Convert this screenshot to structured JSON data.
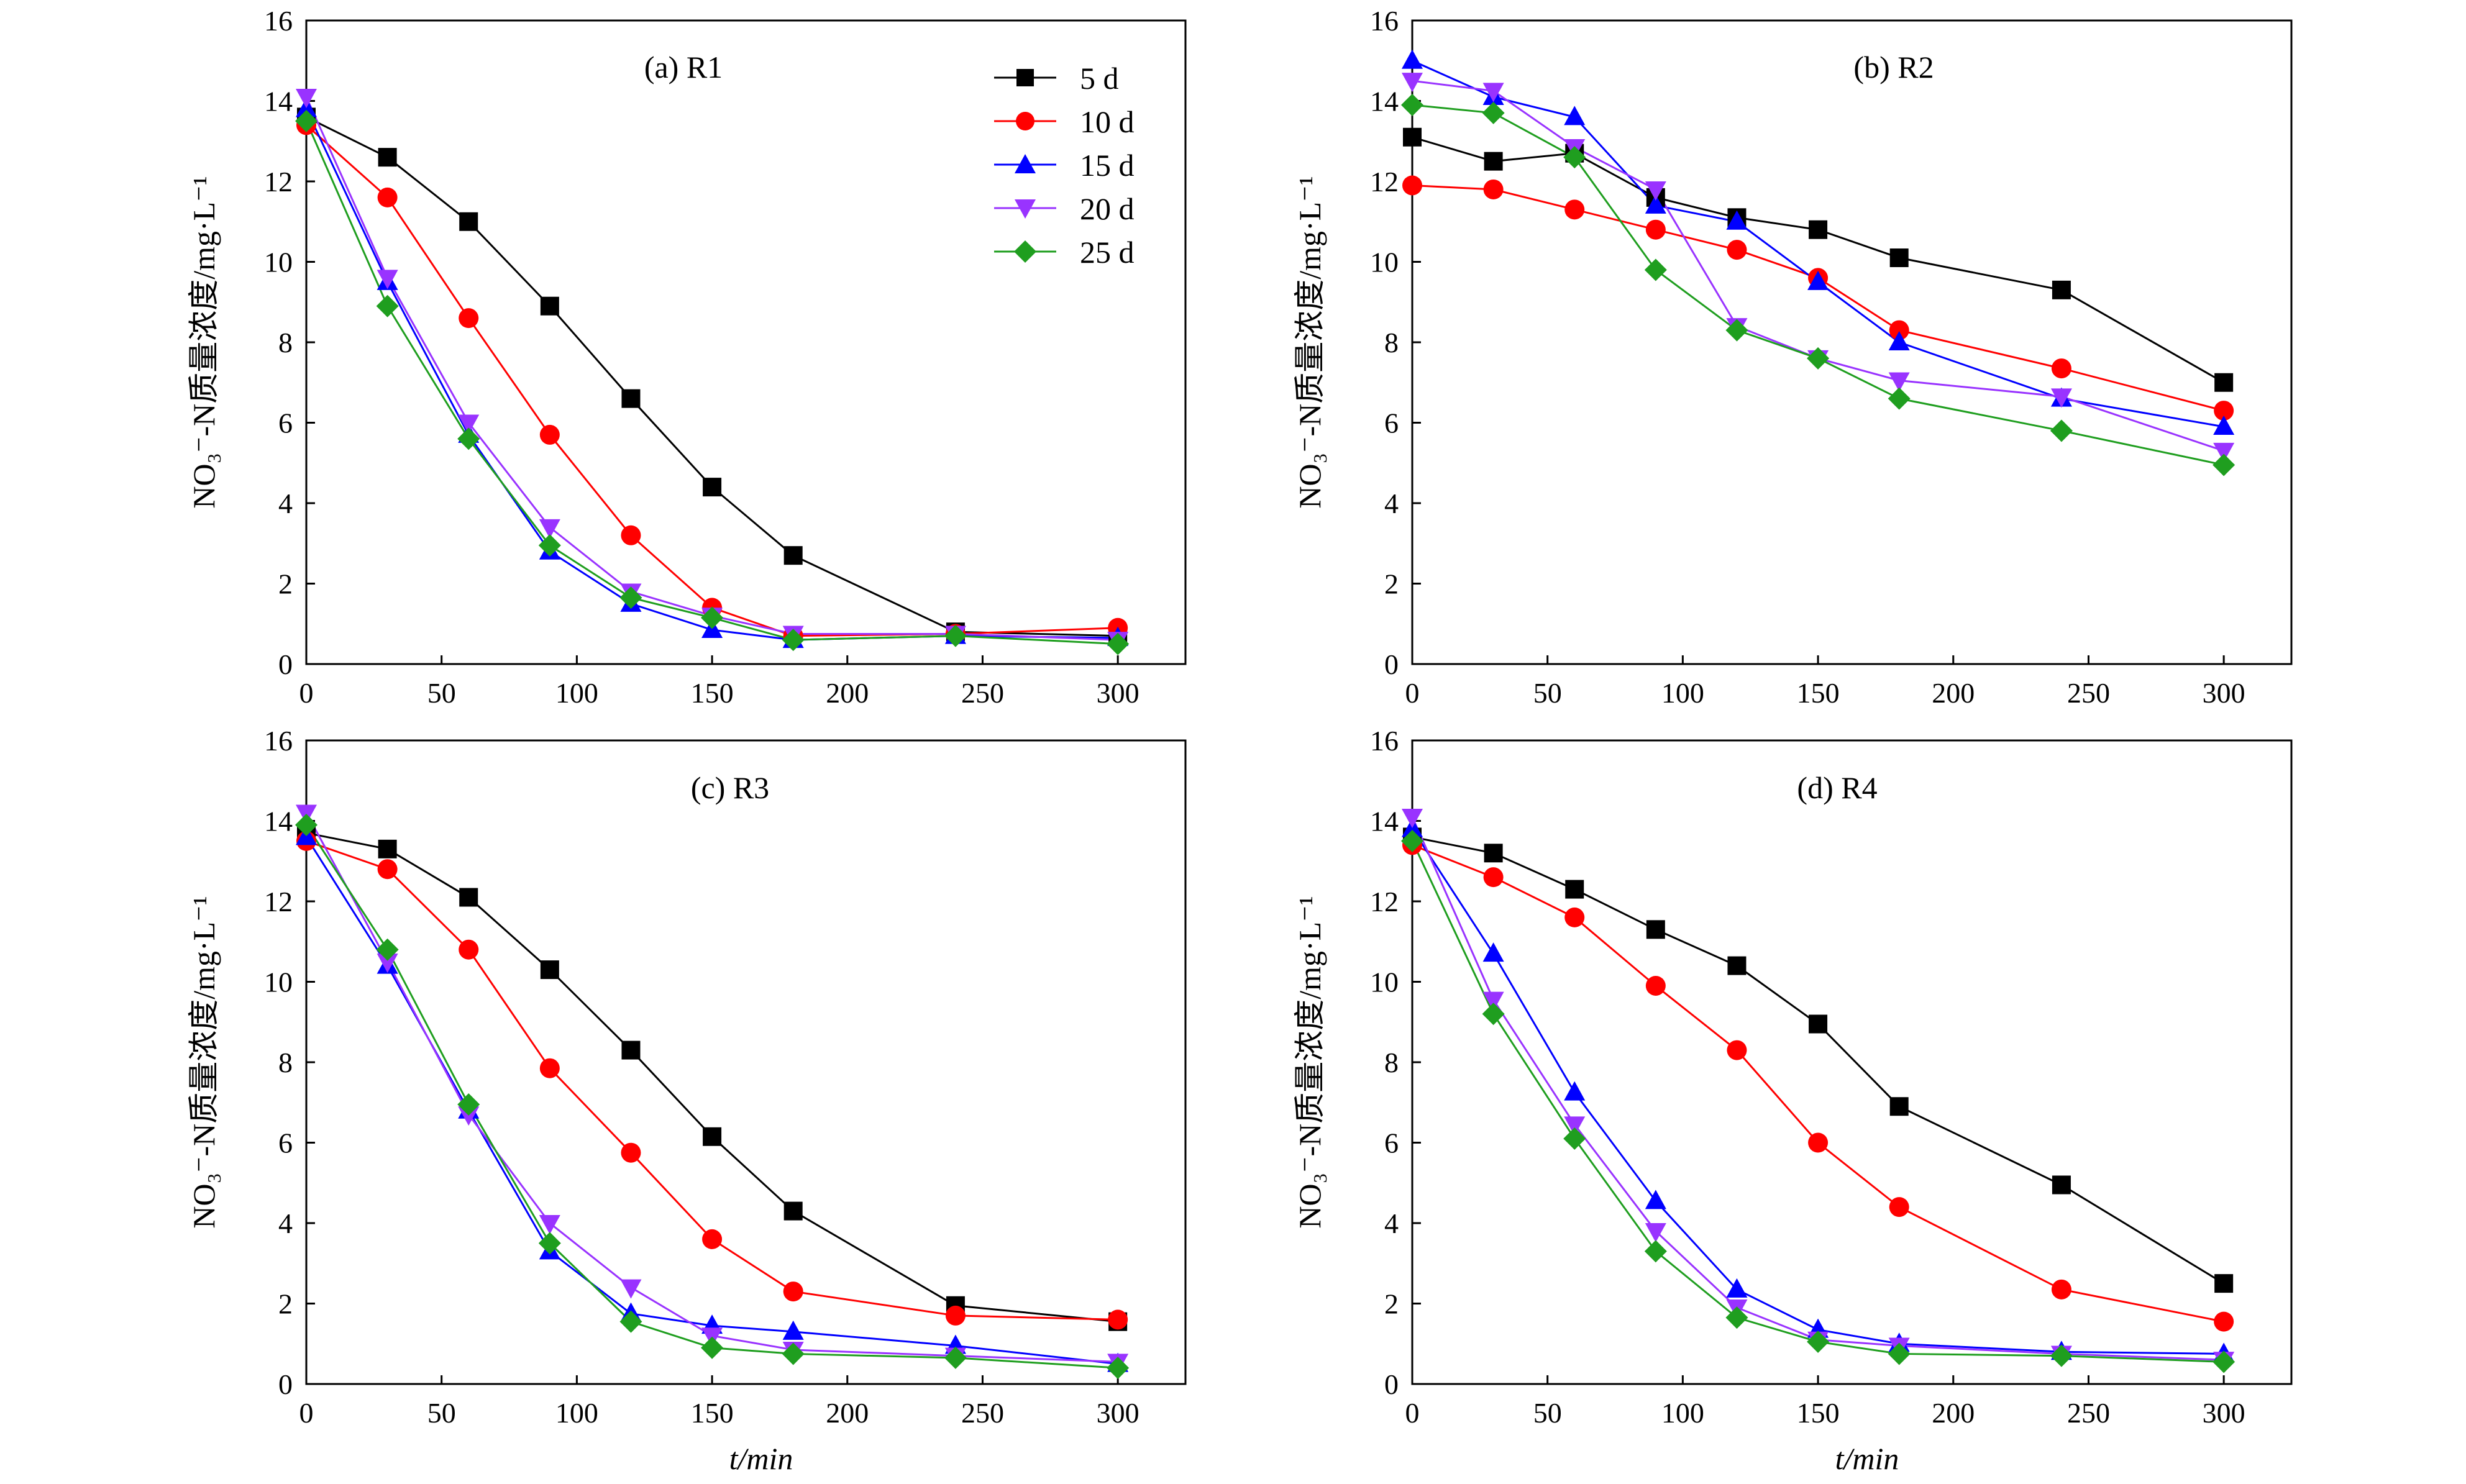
{
  "figure": {
    "ylabel": "NO₃⁻-N质量浓度/mg·L⁻¹",
    "xlabel": "t/min"
  },
  "legend": [
    "5 d",
    "10 d",
    "15 d",
    "20 d",
    "25 d"
  ],
  "colors": {
    "5 d": "#000000",
    "10 d": "#ff0000",
    "15 d": "#0000ff",
    "20 d": "#9933ff",
    "25 d": "#1f9e1f"
  },
  "markers": {
    "5 d": "square",
    "10 d": "circle",
    "15 d": "triangle-up",
    "20 d": "triangle-down",
    "25 d": "diamond"
  },
  "chart_data": [
    {
      "type": "line",
      "title": "(a) R1",
      "xlabel": "",
      "ylabel": "NO₃⁻-N质量浓度/mg·L⁻¹",
      "xlim": [
        0,
        325
      ],
      "ylim": [
        0,
        16
      ],
      "xticks": [
        0,
        50,
        100,
        150,
        200,
        250,
        300
      ],
      "yticks": [
        0,
        2,
        4,
        6,
        8,
        10,
        12,
        14,
        16
      ],
      "legend_position": "top-right",
      "x": [
        0,
        30,
        60,
        90,
        120,
        150,
        180,
        240,
        300
      ],
      "series": [
        {
          "name": "5 d",
          "values": [
            13.6,
            12.6,
            11.0,
            8.9,
            6.6,
            4.4,
            2.7,
            0.8,
            0.7
          ]
        },
        {
          "name": "10 d",
          "values": [
            13.4,
            11.6,
            8.6,
            5.7,
            3.2,
            1.4,
            0.7,
            0.75,
            0.9
          ]
        },
        {
          "name": "15 d",
          "values": [
            13.8,
            9.5,
            5.7,
            2.8,
            1.5,
            0.85,
            0.6,
            0.7,
            0.65
          ]
        },
        {
          "name": "20 d",
          "values": [
            14.1,
            9.6,
            6.0,
            3.4,
            1.8,
            1.2,
            0.75,
            0.75,
            0.6
          ]
        },
        {
          "name": "25 d",
          "values": [
            13.5,
            8.9,
            5.6,
            2.95,
            1.65,
            1.15,
            0.6,
            0.7,
            0.5
          ]
        }
      ]
    },
    {
      "type": "line",
      "title": "(b) R2",
      "xlabel": "",
      "ylabel": "NO₃⁻-N质量浓度/mg·L⁻¹",
      "xlim": [
        0,
        325
      ],
      "ylim": [
        0,
        16
      ],
      "xticks": [
        0,
        50,
        100,
        150,
        200,
        250,
        300
      ],
      "yticks": [
        0,
        2,
        4,
        6,
        8,
        10,
        12,
        14,
        16
      ],
      "x": [
        0,
        30,
        60,
        90,
        120,
        150,
        180,
        240,
        300
      ],
      "series": [
        {
          "name": "5 d",
          "values": [
            13.1,
            12.5,
            12.7,
            11.6,
            11.1,
            10.8,
            10.1,
            9.3,
            7.0
          ]
        },
        {
          "name": "10 d",
          "values": [
            11.9,
            11.8,
            11.3,
            10.8,
            10.3,
            9.6,
            8.3,
            7.35,
            6.3
          ]
        },
        {
          "name": "15 d",
          "values": [
            15.0,
            14.1,
            13.6,
            11.4,
            11.0,
            9.5,
            8.0,
            6.6,
            5.9
          ]
        },
        {
          "name": "20 d",
          "values": [
            14.5,
            14.25,
            12.85,
            11.8,
            8.4,
            7.6,
            7.05,
            6.65,
            5.3
          ]
        },
        {
          "name": "25 d",
          "values": [
            13.9,
            13.7,
            12.6,
            9.8,
            8.3,
            7.6,
            6.6,
            5.8,
            4.95
          ]
        }
      ]
    },
    {
      "type": "line",
      "title": "(c) R3",
      "xlabel": "t/min",
      "ylabel": "NO₃⁻-N质量浓度/mg·L⁻¹",
      "xlim": [
        0,
        325
      ],
      "ylim": [
        0,
        16
      ],
      "xticks": [
        0,
        50,
        100,
        150,
        200,
        250,
        300
      ],
      "yticks": [
        0,
        2,
        4,
        6,
        8,
        10,
        12,
        14,
        16
      ],
      "x": [
        0,
        30,
        60,
        90,
        120,
        150,
        180,
        240,
        300
      ],
      "series": [
        {
          "name": "5 d",
          "values": [
            13.7,
            13.3,
            12.1,
            10.3,
            8.3,
            6.15,
            4.3,
            1.95,
            1.55
          ]
        },
        {
          "name": "10 d",
          "values": [
            13.5,
            12.8,
            10.8,
            7.85,
            5.75,
            3.6,
            2.3,
            1.7,
            1.6
          ]
        },
        {
          "name": "15 d",
          "values": [
            13.6,
            10.4,
            6.8,
            3.3,
            1.75,
            1.45,
            1.3,
            0.95,
            0.5
          ]
        },
        {
          "name": "20 d",
          "values": [
            14.2,
            10.5,
            6.7,
            4.0,
            2.4,
            1.2,
            0.85,
            0.7,
            0.55
          ]
        },
        {
          "name": "25 d",
          "values": [
            13.9,
            10.8,
            6.95,
            3.5,
            1.55,
            0.9,
            0.75,
            0.65,
            0.4
          ]
        }
      ]
    },
    {
      "type": "line",
      "title": "(d) R4",
      "xlabel": "t/min",
      "ylabel": "NO₃⁻-N质量浓度/mg·L⁻¹",
      "xlim": [
        0,
        325
      ],
      "ylim": [
        0,
        16
      ],
      "xticks": [
        0,
        50,
        100,
        150,
        200,
        250,
        300
      ],
      "yticks": [
        0,
        2,
        4,
        6,
        8,
        10,
        12,
        14,
        16
      ],
      "x": [
        0,
        30,
        60,
        90,
        120,
        150,
        180,
        240,
        300
      ],
      "series": [
        {
          "name": "5 d",
          "values": [
            13.6,
            13.2,
            12.3,
            11.3,
            10.4,
            8.95,
            6.9,
            4.95,
            2.5
          ]
        },
        {
          "name": "10 d",
          "values": [
            13.4,
            12.6,
            11.6,
            9.9,
            8.3,
            6.0,
            4.4,
            2.35,
            1.55
          ]
        },
        {
          "name": "15 d",
          "values": [
            13.8,
            10.7,
            7.25,
            4.55,
            2.35,
            1.35,
            1.0,
            0.8,
            0.75
          ]
        },
        {
          "name": "20 d",
          "values": [
            14.1,
            9.55,
            6.45,
            3.8,
            1.9,
            1.1,
            0.95,
            0.75,
            0.6
          ]
        },
        {
          "name": "25 d",
          "values": [
            13.5,
            9.2,
            6.1,
            3.3,
            1.65,
            1.05,
            0.75,
            0.7,
            0.55
          ]
        }
      ]
    }
  ]
}
